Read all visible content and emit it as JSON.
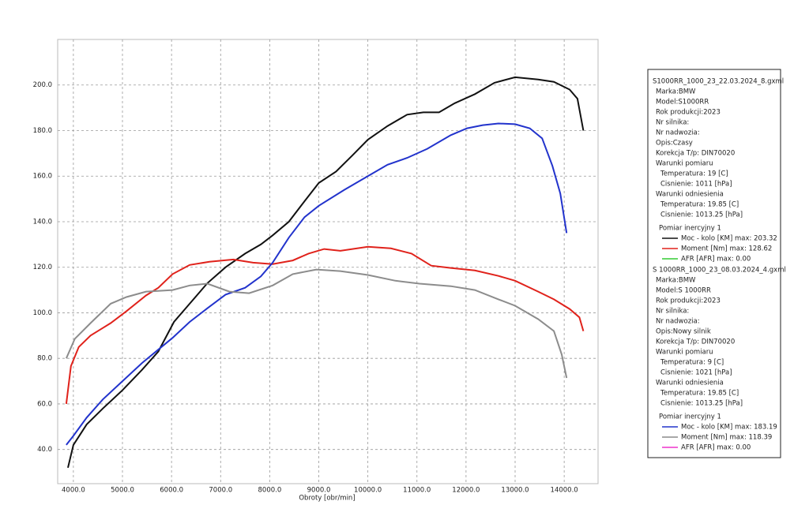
{
  "chart_data": {
    "type": "line",
    "x_label": "Obroty [obr/min]",
    "xlim": [
      3680,
      14690
    ],
    "xticks": [
      {
        "value": 4000,
        "label": "4000.0"
      },
      {
        "value": 5000,
        "label": "5000.0"
      },
      {
        "value": 6000,
        "label": "6000.0"
      },
      {
        "value": 7000,
        "label": "7000.0"
      },
      {
        "value": 8000,
        "label": "8000.0"
      },
      {
        "value": 9000,
        "label": "9000.0"
      },
      {
        "value": 10000,
        "label": "10000.0"
      },
      {
        "value": 11000,
        "label": "11000.0"
      },
      {
        "value": 12000,
        "label": "12000.0"
      },
      {
        "value": 13000,
        "label": "13000.0"
      },
      {
        "value": 14000,
        "label": "14000.0"
      }
    ],
    "ylim": [
      25,
      220
    ],
    "yticks": [
      {
        "value": 40,
        "label": "40.0"
      },
      {
        "value": 60,
        "label": "60.0"
      },
      {
        "value": 80,
        "label": "80.0"
      },
      {
        "value": 100,
        "label": "100.0"
      },
      {
        "value": 120,
        "label": "120.0"
      },
      {
        "value": 140,
        "label": "140.0"
      },
      {
        "value": 160,
        "label": "160.0"
      },
      {
        "value": 180,
        "label": "180.0"
      },
      {
        "value": 200,
        "label": "200.0"
      }
    ],
    "grid": true,
    "series": [
      {
        "name": "Moc - kolo [KM] max: 203.32",
        "color": "#111111",
        "x": [
          3890,
          4000,
          4270,
          4600,
          5000,
          5400,
          5730,
          6050,
          6370,
          6730,
          7100,
          7500,
          7820,
          8060,
          8390,
          8710,
          9000,
          9350,
          9680,
          10000,
          10400,
          10800,
          11130,
          11450,
          11770,
          12180,
          12580,
          13000,
          13470,
          13790,
          14110,
          14270,
          14390
        ],
        "values": [
          32,
          42,
          51,
          58,
          66,
          75,
          83,
          96,
          104,
          113,
          120,
          126,
          130,
          134,
          140,
          149,
          157,
          162,
          169,
          176,
          182,
          187,
          188,
          188,
          192,
          196,
          201,
          203.4,
          202.4,
          201.4,
          198,
          194,
          180
        ]
      },
      {
        "name": "Moment [Nm] max: 128.62",
        "color": "#e0221b",
        "x": [
          3855,
          3950,
          4110,
          4350,
          4760,
          5080,
          5480,
          5730,
          6020,
          6370,
          6770,
          7260,
          7660,
          8060,
          8470,
          8790,
          9110,
          9440,
          10000,
          10470,
          10890,
          11290,
          11690,
          12180,
          12660,
          13000,
          13470,
          13790,
          14110,
          14310,
          14390
        ],
        "values": [
          60,
          76.6,
          85,
          90,
          95.5,
          100.7,
          107.6,
          111,
          117,
          121,
          122.4,
          123.4,
          122,
          121.4,
          123,
          126,
          128,
          127.2,
          129,
          128.3,
          126,
          120.7,
          119.7,
          118.6,
          116.2,
          114.1,
          109.3,
          105.9,
          101.7,
          98,
          92
        ]
      },
      {
        "name": "Moc - kolo [KM] max: 183.19",
        "color": "#2233cc",
        "x": [
          3855,
          4000,
          4270,
          4600,
          5000,
          5400,
          6020,
          6370,
          6730,
          7100,
          7500,
          7820,
          8060,
          8390,
          8710,
          9000,
          9520,
          10000,
          10400,
          10800,
          11210,
          11690,
          12020,
          12340,
          12660,
          13000,
          13300,
          13550,
          13760,
          13920,
          14050
        ],
        "values": [
          42,
          46,
          54,
          62,
          70,
          78,
          89,
          96,
          102,
          108,
          111,
          116,
          122,
          133,
          142,
          147,
          154,
          160,
          165,
          168,
          172,
          178,
          181,
          182.4,
          183.1,
          182.8,
          181,
          176.6,
          164.5,
          152.4,
          135
        ]
      },
      {
        "name": "Moment [Nm] max: 118.39",
        "color": "#8c8c8c",
        "x": [
          3855,
          4030,
          4350,
          4760,
          5080,
          5480,
          6020,
          6370,
          6730,
          7180,
          7580,
          8060,
          8470,
          8950,
          9440,
          10000,
          10560,
          11050,
          11690,
          12180,
          12660,
          13000,
          13470,
          13790,
          13950,
          14050
        ],
        "values": [
          80,
          88.6,
          95.5,
          104,
          106.9,
          109.3,
          110,
          112,
          112.8,
          109.3,
          108.6,
          112,
          117,
          119,
          118.3,
          116.6,
          114.1,
          112.8,
          111.7,
          110,
          105.9,
          103.1,
          97.2,
          92,
          81.7,
          71.4
        ]
      }
    ],
    "legend_panel": [
      {
        "file": "S1000RR_1000_23_22.03.2024_8.gxml",
        "info": [
          "Marka:BMW",
          "Model:S1000RR",
          "Rok produkcji:2023",
          "Nr silnika:",
          "Nr nadwozia:",
          "Opis:Czasy",
          "Korekcja T/p: DIN70020"
        ],
        "measure": {
          "title": "Warunki pomiaru",
          "lines": [
            "Temperatura: 19 [C]",
            "Cisnienie: 1011 [hPa]"
          ]
        },
        "reference": {
          "title": "Warunki odniesienia",
          "lines": [
            "Temperatura: 19.85 [C]",
            "Cisnienie: 1013.25 [hPa]"
          ]
        },
        "test": "Pomiar inercyjny 1",
        "afr": {
          "label": "AFR [AFR] max: 0.00",
          "color": "#33cc33"
        }
      },
      {
        "file": "S 1000RR_1000_23_08.03.2024_4.gxml",
        "info": [
          "Marka:BMW",
          "Model:S 1000RR",
          "Rok produkcji:2023",
          "Nr silnika:",
          "Nr nadwozia:",
          "Opis:Nowy silnik",
          "Korekcja T/p: DIN70020"
        ],
        "measure": {
          "title": "Warunki pomiaru",
          "lines": [
            "Temperatura: 9 [C]",
            "Cisnienie: 1021 [hPa]"
          ]
        },
        "reference": {
          "title": "Warunki odniesienia",
          "lines": [
            "Temperatura: 19.85 [C]",
            "Cisnienie: 1013.25 [hPa]"
          ]
        },
        "test": "Pomiar inercyjny 1",
        "afr": {
          "label": "AFR [AFR] max: 0.00",
          "color": "#ee33cc"
        }
      }
    ]
  }
}
